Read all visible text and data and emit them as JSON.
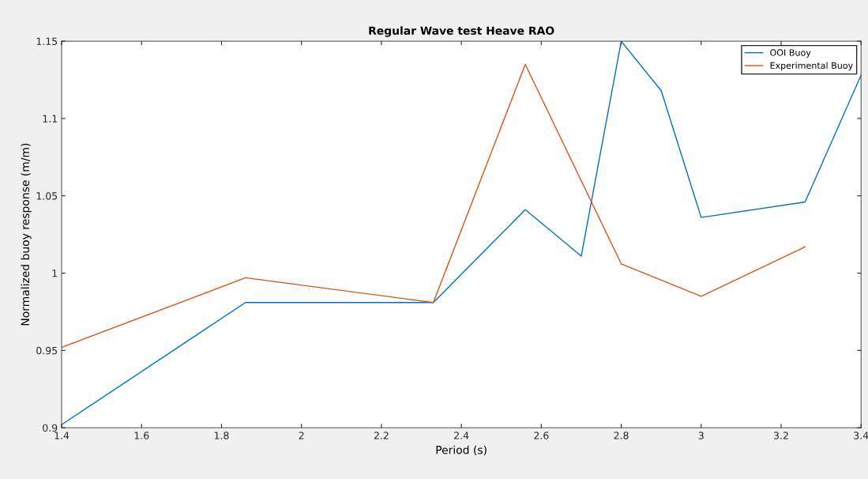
{
  "chart_data": {
    "type": "line",
    "title": "Regular Wave test Heave RAO",
    "xlabel": "Period (s)",
    "ylabel": "Normalized buoy response (m/m)",
    "series": [
      {
        "name": "OOI Buoy",
        "color": "#0072bd",
        "x": [
          1.4,
          1.86,
          2.33,
          2.56,
          2.7,
          2.8,
          2.9,
          3.0,
          3.26,
          3.4
        ],
        "values": [
          0.902,
          0.981,
          0.981,
          1.041,
          1.011,
          1.15,
          1.118,
          1.036,
          1.046,
          1.128
        ]
      },
      {
        "name": "Experimental Buoy",
        "color": "#d95319",
        "x": [
          1.4,
          1.86,
          2.33,
          2.56,
          2.8,
          3.0,
          3.26
        ],
        "values": [
          0.952,
          0.997,
          0.981,
          1.135,
          1.006,
          0.985,
          1.017
        ]
      }
    ],
    "xlim": [
      1.4,
      3.4
    ],
    "xticks": [
      1.4,
      1.6,
      1.8,
      2,
      2.2,
      2.4,
      2.6,
      2.8,
      3,
      3.2,
      3.4
    ],
    "ylim": [
      0.9,
      1.15
    ],
    "yticks": [
      0.9,
      0.95,
      1,
      1.05,
      1.1,
      1.15
    ],
    "legend": "top right",
    "grid": false
  }
}
